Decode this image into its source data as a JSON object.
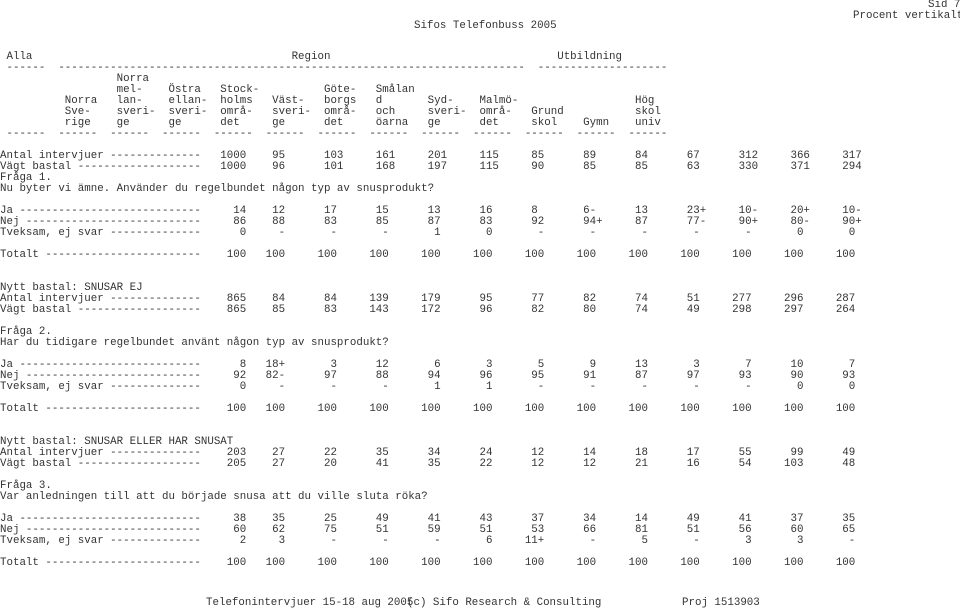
{
  "header": {
    "title": "Sifos Telefonbuss 2005",
    "page": "Sid 7",
    "subtitle": "Procent vertikalt"
  },
  "report_lines": [
    " Alla                                        Region                                   Utbildning",
    " ------  ------------------------------------------------------------------------  --------------------",
    "                  Norra",
    "                  mel-    Östra   Stock-          Göte-   Smålan",
    "          Norra   lan-    ellan-  holms   Väst-   borgs   d       Syd-    Malmö-                  Hög",
    "          Sve-    sveri-  sveri-  områ-   sveri-  områ-   och     sveri-  områ-   Grund           skol",
    "          rige    ge      ge      det     ge      det     öarna   ge      det     skol    Gymn    univ",
    " ------  ------  ------  ------  ------  ------  ------  ------  ------  ------  ------  ------  ------",
    "",
    "Antal intervjuer --------------   1000    95      103     161     201     115     85      89      84      67      312     366     317",
    "Vägt bastal -------------------   1000    96      101     168     197     115     90      85      85      63      330     371     294",
    "Fråga 1.",
    "Nu byter vi ämne. Använder du regelbundet någon typ av snusprodukt?",
    "",
    "Ja ----------------------------     14    12      17      15      13      16      8       6-      13      23+     10-     20+     10-",
    "Nej ---------------------------     86    88      83      85      87      83      92      94+     87      77-     90+     80-     90+",
    "Tveksam, ej svar --------------      0     -       -       -       1       0       -       -       -       -       -       0       0",
    "",
    "Totalt ------------------------    100   100     100     100     100     100     100     100     100     100     100     100     100",
    "",
    "",
    "Nytt bastal: SNUSAR EJ",
    "Antal intervjuer --------------    865    84      84     139     179      95      77      82      74      51     277     296     287",
    "Vägt bastal -------------------    865    85      83     143     172      96      82      80      74      49     298     297     264",
    "",
    "Fråga 2.",
    "Har du tidigare regelbundet använt någon typ av snusprodukt?",
    "",
    "Ja ----------------------------      8   18+       3      12       6       3       5       9      13       3       7      10       7",
    "Nej ---------------------------     92   82-      97      88      94      96      95      91      87      97      93      90      93",
    "Tveksam, ej svar --------------      0     -       -       -       1       1       -       -       -       -       -       0       0",
    "",
    "Totalt ------------------------    100   100     100     100     100     100     100     100     100     100     100     100     100",
    "",
    "",
    "Nytt bastal: SNUSAR ELLER HAR SNUSAT",
    "Antal intervjuer --------------    203    27      22      35      34      24      12      14      18      17      55      99      49",
    "Vägt bastal -------------------    205    27      20      41      35      22      12      12      21      16      54     103      48",
    "",
    "Fråga 3.",
    "Var anledningen till att du började snusa att du ville sluta röka?",
    "",
    "Ja ----------------------------     38    35      25      49      41      43      37      34      14      49      41      37      35",
    "Nej ---------------------------     60    62      75      51      59      51      53      66      81      51      56      60      65",
    "Tveksam, ej svar --------------      2     3       -       -       -       6     11+       -       5       -       3       3       -",
    "",
    "Totalt ------------------------    100   100     100     100     100     100     100     100     100     100     100     100     100"
  ],
  "footer": {
    "left": "Telefonintervjuer 15-18 aug 2005",
    "center": "(c) Sifo Research & Consulting",
    "right": "Proj 1513903"
  }
}
